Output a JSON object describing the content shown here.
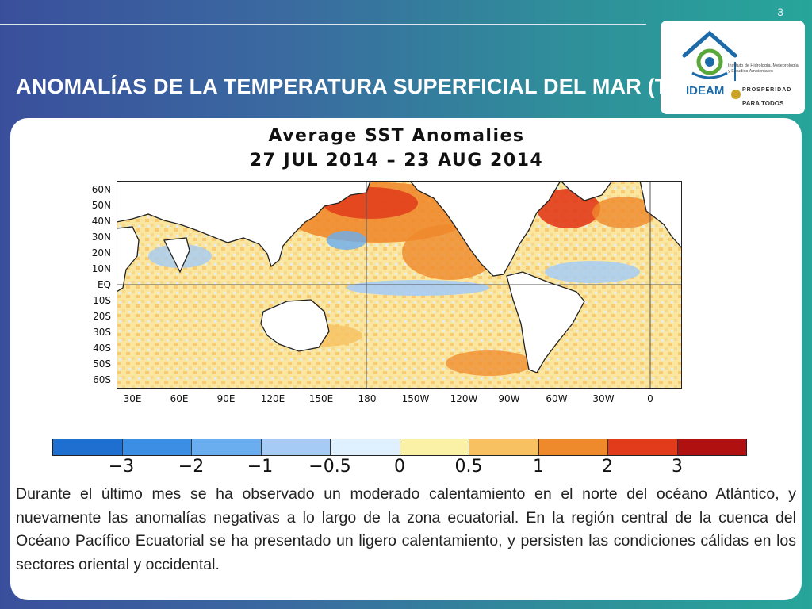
{
  "slide": {
    "number": "3",
    "title": "ANOMALÍAS DE LA TEMPERATURA SUPERFICIAL DEL MAR (TSM)",
    "description": "Durante el último mes se ha observado un moderado calentamiento en el norte del océano Atlántico, y nuevamente las anomalías negativas a lo largo de la zona ecuatorial. En la región central de la cuenca del Océano Pacífico Ecuatorial se ha presentado un ligero calentamiento, y persisten las condiciones cálidas en los sectores oriental y occidental."
  },
  "logo": {
    "name": "IDEAM",
    "institute": "Instituto de Hidrología, Meteorología y Estudios Ambientales",
    "motto_line1": "PROSPERIDAD",
    "motto_line2": "PARA TODOS",
    "colors": {
      "blue": "#1d6aa8",
      "green": "#5aa83c"
    }
  },
  "map": {
    "title": "Average SST Anomalies",
    "period": "27 JUL 2014 – 23 AUG 2014",
    "lat_labels": [
      "60N",
      "50N",
      "40N",
      "30N",
      "20N",
      "10N",
      "EQ",
      "10S",
      "20S",
      "30S",
      "40S",
      "50S",
      "60S"
    ],
    "lon_labels": [
      "30E",
      "60E",
      "90E",
      "120E",
      "150E",
      "180",
      "150W",
      "120W",
      "90W",
      "60W",
      "30W",
      "0"
    ],
    "colorbar": {
      "labels": [
        "−3",
        "−2",
        "−1",
        "−0.5",
        "0",
        "0.5",
        "1",
        "2",
        "3"
      ],
      "colors": [
        "#1f6fd0",
        "#3c8ee4",
        "#6aaef0",
        "#a6ccf5",
        "#dff0ff",
        "#fbf1a6",
        "#f7c060",
        "#ef8a2c",
        "#e23b1b",
        "#b01010"
      ]
    }
  }
}
